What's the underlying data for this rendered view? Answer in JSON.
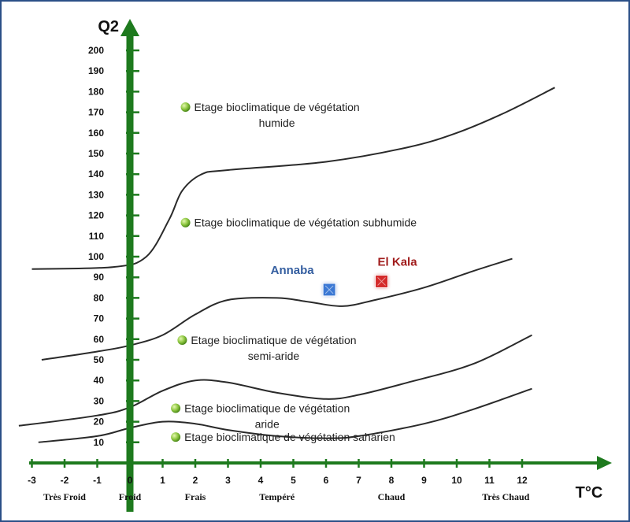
{
  "chart_data": {
    "type": "line",
    "title": "",
    "ylabel": "Q2",
    "xlabel": "T°C",
    "ylim": [
      0,
      210
    ],
    "xlim": [
      -3.5,
      13.5
    ],
    "x_ticks": [
      "-3",
      "-2",
      "-1",
      "0",
      "1",
      "2",
      "3",
      "4",
      "5",
      "6",
      "7",
      "8",
      "9",
      "10",
      "11",
      "12"
    ],
    "y_ticks": [
      "10",
      "20",
      "30",
      "40",
      "50",
      "60",
      "70",
      "80",
      "90",
      "100",
      "110",
      "120",
      "130",
      "140",
      "150",
      "160",
      "170",
      "180",
      "190",
      "200"
    ],
    "temperature_classes": [
      {
        "label": "Très Froid",
        "x": -2
      },
      {
        "label": "Froid",
        "x": 0
      },
      {
        "label": "Frais",
        "x": 2
      },
      {
        "label": "Tempéré",
        "x": 4.5
      },
      {
        "label": "Chaud",
        "x": 8
      },
      {
        "label": "Très Chaud",
        "x": 11.5
      }
    ],
    "series": [
      {
        "values": [
          [
            -3,
            94
          ],
          [
            -0.5,
            95
          ],
          [
            0.5,
            100
          ],
          [
            1.2,
            118
          ],
          [
            1.6,
            132
          ],
          [
            2.2,
            140
          ],
          [
            3,
            142
          ],
          [
            6,
            146
          ],
          [
            8.5,
            153
          ],
          [
            10,
            160
          ],
          [
            11.5,
            170
          ],
          [
            13,
            182
          ]
        ]
      },
      {
        "values": [
          [
            -2.7,
            50
          ],
          [
            -1,
            54
          ],
          [
            0,
            57
          ],
          [
            1,
            62
          ],
          [
            2,
            72
          ],
          [
            3,
            79
          ],
          [
            4.5,
            80
          ],
          [
            5.5,
            78
          ],
          [
            6.5,
            76
          ],
          [
            7.5,
            79
          ],
          [
            9,
            85
          ],
          [
            10.5,
            93
          ],
          [
            11.7,
            99
          ]
        ]
      },
      {
        "values": [
          [
            -3.4,
            18
          ],
          [
            -1,
            23
          ],
          [
            0,
            27
          ],
          [
            1,
            35
          ],
          [
            2,
            40
          ],
          [
            3,
            39
          ],
          [
            4.5,
            34
          ],
          [
            6,
            31
          ],
          [
            7,
            33
          ],
          [
            8.5,
            39
          ],
          [
            10.5,
            48
          ],
          [
            12.3,
            62
          ]
        ]
      },
      {
        "values": [
          [
            -2.8,
            10
          ],
          [
            -1,
            13
          ],
          [
            0,
            17
          ],
          [
            1,
            20
          ],
          [
            2,
            19
          ],
          [
            3,
            16
          ],
          [
            4.5,
            13
          ],
          [
            6,
            12
          ],
          [
            7,
            13
          ],
          [
            9,
            19
          ],
          [
            10.5,
            26
          ],
          [
            12.3,
            36
          ]
        ]
      }
    ],
    "zones": [
      {
        "lines": [
          "Etage bioclimatique de végétation",
          "humide"
        ],
        "x": 1.7,
        "y": 171
      },
      {
        "lines": [
          "Etage bioclimatique de végétation subhumide"
        ],
        "x": 1.7,
        "y": 115
      },
      {
        "lines": [
          "Etage bioclimatique de végétation",
          "semi-aride"
        ],
        "x": 1.6,
        "y": 58
      },
      {
        "lines": [
          "Etage bioclimatique de végétation",
          "aride"
        ],
        "x": 1.4,
        "y": 25
      },
      {
        "lines": [
          "Etage bioclimatique de végétation saharien"
        ],
        "x": 1.4,
        "y": 11
      }
    ],
    "stations": [
      {
        "name": "Annaba",
        "x": 6.1,
        "y": 84,
        "color": "#3a78d4",
        "label_color": "#345ea0"
      },
      {
        "name": "El Kala",
        "x": 7.7,
        "y": 88,
        "color": "#d42a2a",
        "label_color": "#a11d1d"
      }
    ]
  },
  "colors": {
    "axis": "#1e7a1e",
    "curve": "#2a2a2a",
    "frame": "#2b4f87",
    "bullet": "#8cc63f"
  }
}
